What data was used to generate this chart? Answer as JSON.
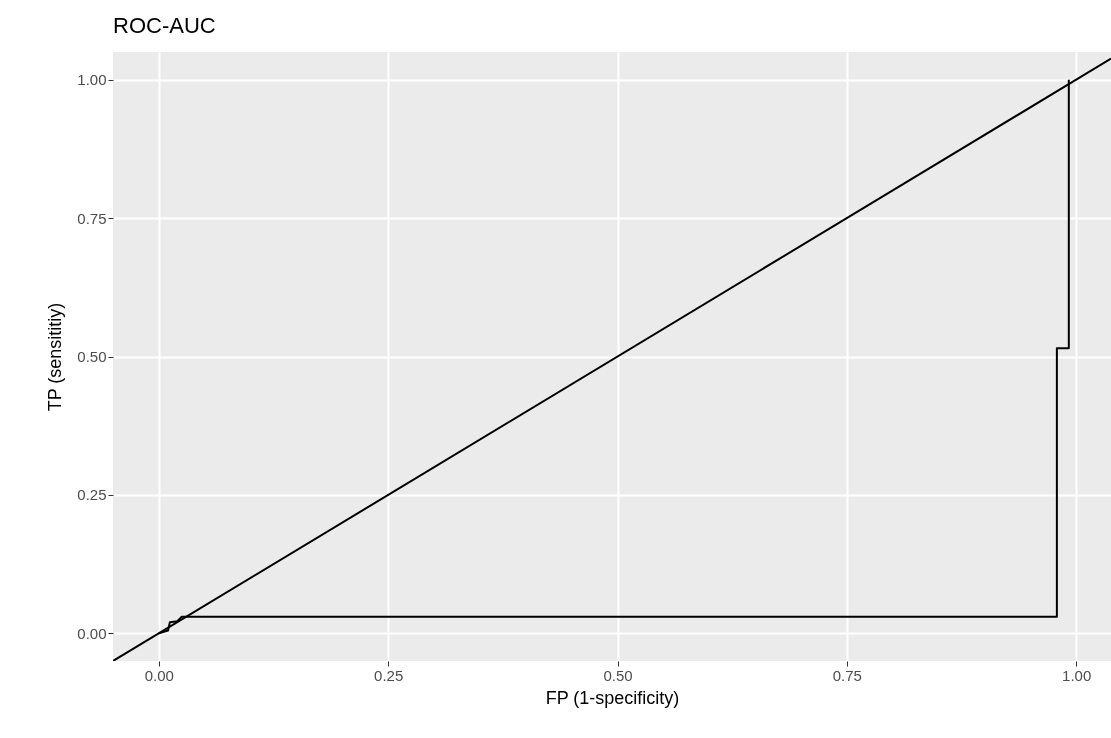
{
  "chart_data": {
    "type": "line",
    "title": "ROC-AUC",
    "xlabel": "FP (1-specificity)",
    "ylabel": "TP (sensititiy)",
    "xlim": [
      -0.05,
      1.038
    ],
    "ylim": [
      -0.05,
      1.05
    ],
    "xticks": [
      {
        "value": 0,
        "label": "0.00"
      },
      {
        "value": 0.25,
        "label": "0.25"
      },
      {
        "value": 0.5,
        "label": "0.50"
      },
      {
        "value": 0.75,
        "label": "0.75"
      },
      {
        "value": 1,
        "label": "1.00"
      }
    ],
    "yticks": [
      {
        "value": 0,
        "label": "0.00"
      },
      {
        "value": 0.25,
        "label": "0.25"
      },
      {
        "value": 0.5,
        "label": "0.50"
      },
      {
        "value": 0.75,
        "label": "0.75"
      },
      {
        "value": 1,
        "label": "1.00"
      }
    ],
    "grid": true,
    "line_style": "solid",
    "series": [
      {
        "color": "#000000",
        "x": [
          0,
          0.01,
          0.012,
          0.02,
          0.025,
          0.979,
          0.979,
          0.992,
          0.992
        ],
        "values": [
          0,
          0.005,
          0.02,
          0.022,
          0.03,
          0.03,
          0.515,
          0.515,
          1.0
        ]
      },
      {
        "color": "#000000",
        "x": [
          -0.05,
          1.038
        ],
        "values": [
          -0.05,
          1.038
        ]
      }
    ]
  }
}
